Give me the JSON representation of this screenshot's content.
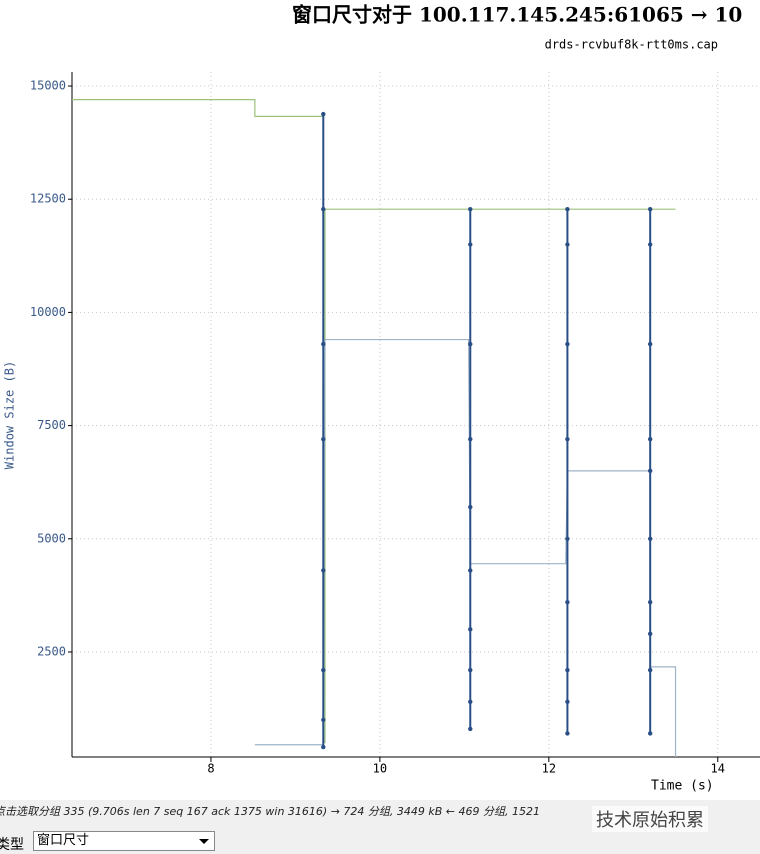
{
  "chart_data": {
    "type": "line",
    "title": "窗口尺寸对于 100.117.145.245:61065 → 10",
    "subtitle": "drds-rcvbuf8k-rtt0ms.cap",
    "x_label": "Time (s)",
    "y_label": "Window Size (B)",
    "xlim": [
      6.355,
      14.5
    ],
    "ylim": [
      180,
      15310
    ],
    "xticks": [
      8,
      10,
      12,
      14
    ],
    "yticks": [
      2500,
      5000,
      7500,
      10000,
      12500,
      15000
    ],
    "grid": true,
    "series": [
      {
        "color": "#9cc27a",
        "x": [
          6.355,
          8.52,
          8.52,
          9.33,
          9.33,
          9.35,
          9.35,
          13.5
        ],
        "values": [
          14700,
          14700,
          14330,
          14330,
          500,
          500,
          12280,
          12280
        ]
      },
      {
        "color": "#9fb4c9",
        "x": [
          8.52,
          9.33,
          9.35,
          11.05,
          11.07,
          12.2,
          12.22,
          13.2,
          13.2,
          13.5,
          13.5
        ],
        "values": [
          450,
          450,
          9400,
          9400,
          4450,
          4450,
          6500,
          6500,
          2170,
          2170,
          180
        ]
      },
      {
        "color": "#2a4f86",
        "markers": true,
        "x": [
          9.33,
          9.33,
          9.33,
          9.33,
          9.33,
          9.33,
          9.33,
          9.33,
          null,
          11.07,
          11.07,
          11.07,
          11.07,
          11.07,
          11.07,
          11.07,
          11.07,
          11.07,
          11.07,
          null,
          12.22,
          12.22,
          12.22,
          12.22,
          12.22,
          12.22,
          12.22,
          12.22,
          12.22,
          null,
          13.2,
          13.2,
          13.2,
          13.2,
          13.2,
          13.2,
          13.2,
          13.2,
          13.2,
          13.2
        ],
        "values": [
          14380,
          12280,
          9300,
          7200,
          4300,
          2100,
          1000,
          400,
          null,
          12280,
          11500,
          9300,
          7200,
          5700,
          4300,
          3000,
          2100,
          1400,
          800,
          null,
          12280,
          11500,
          9300,
          7200,
          5000,
          3600,
          2100,
          1400,
          700,
          null,
          12280,
          11500,
          9300,
          7200,
          6500,
          5000,
          3600,
          2900,
          2100,
          700
        ]
      }
    ]
  },
  "status": "点击选取分组 335 (9.706s len 7 seq 167 ack 1375 win 31616) → 724 分组, 3449 kB ← 469 分组, 1521",
  "watermark": "技术原始积累",
  "controls": {
    "label": "类型",
    "select": "窗口尺寸"
  }
}
